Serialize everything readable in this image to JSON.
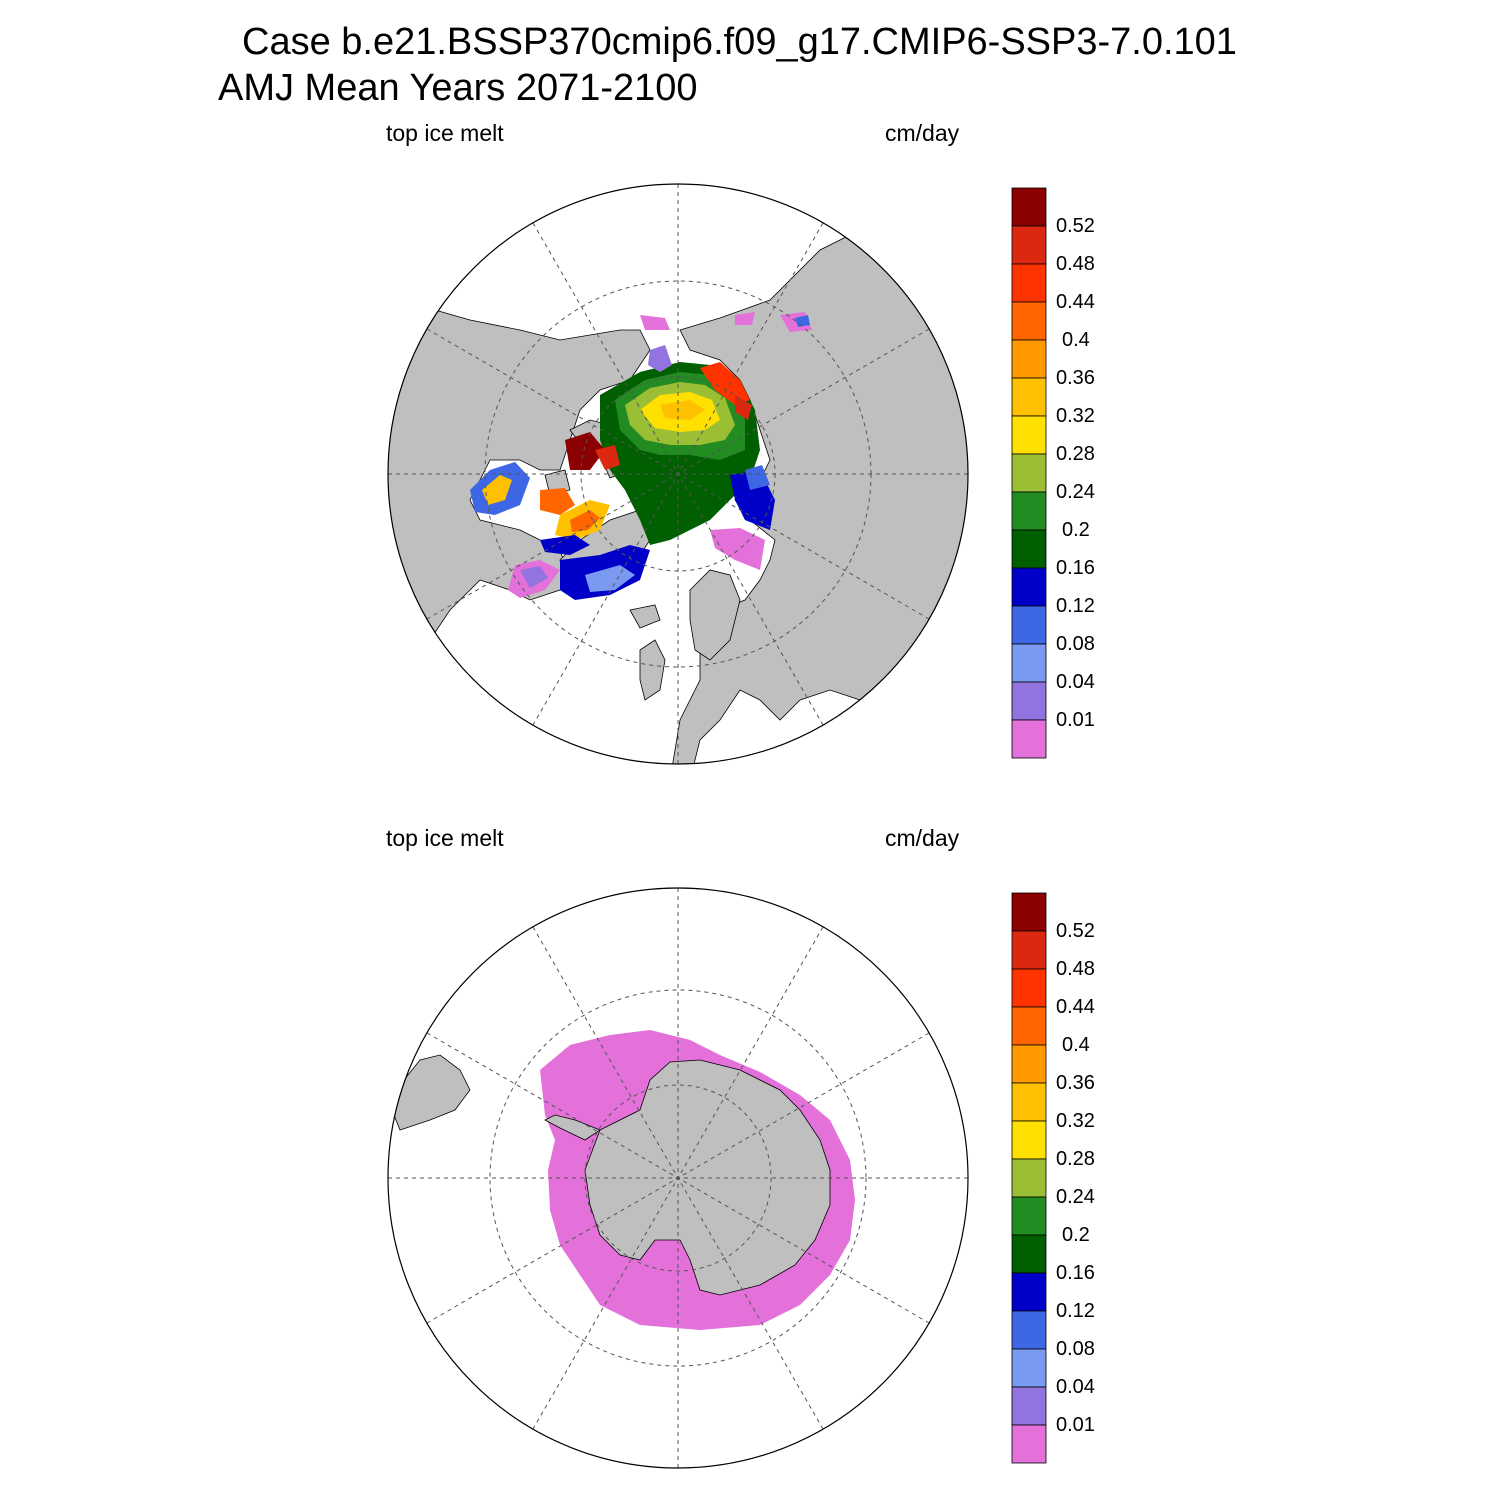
{
  "title": {
    "line1": "Case b.e21.BSSP370cmip6.f09_g17.CMIP6-SSP3-7.0.101",
    "line2": "AMJ Mean   Years 2071-2100"
  },
  "panels": [
    {
      "left_label": "top ice melt",
      "right_label": "cm/day",
      "hemisphere": "north"
    },
    {
      "left_label": "top ice melt",
      "right_label": "cm/day",
      "hemisphere": "south"
    }
  ],
  "colorbar": {
    "levels": [
      "0.01",
      "0.04",
      "0.08",
      "0.12",
      "0.16",
      "0.2",
      "0.24",
      "0.28",
      "0.32",
      "0.36",
      "0.4",
      "0.44",
      "0.48",
      "0.52"
    ],
    "colors": [
      "#e371d9",
      "#9373e0",
      "#7a9af1",
      "#3e67e6",
      "#0000c8",
      "#005f00",
      "#228b22",
      "#9abf35",
      "#ffe000",
      "#ffc000",
      "#ff9900",
      "#ff6600",
      "#ff3300",
      "#dd2811",
      "#8b0000"
    ]
  },
  "colors": {
    "land": "#bfbfbf",
    "ocean": "#ffffff",
    "grid": "#444444"
  }
}
